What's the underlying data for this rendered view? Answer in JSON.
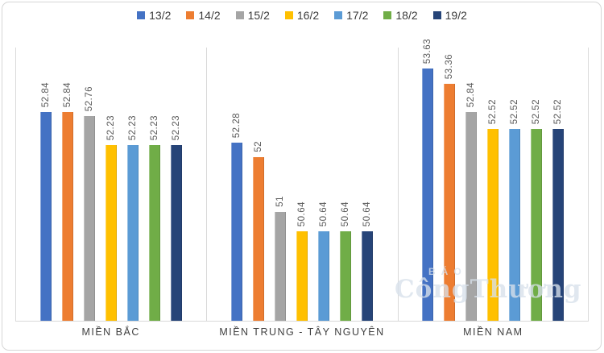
{
  "chart_data": {
    "type": "bar",
    "categories": [
      "MIỀN BẮC",
      "MIỀN TRUNG - TÂY NGUYÊN",
      "MIỀN NAM"
    ],
    "series": [
      {
        "name": "13/2",
        "color": "#4472C4",
        "values": [
          52.84,
          52.28,
          53.63
        ]
      },
      {
        "name": "14/2",
        "color": "#ED7D31",
        "values": [
          52.84,
          52,
          53.36
        ]
      },
      {
        "name": "15/2",
        "color": "#A5A5A5",
        "values": [
          52.76,
          51,
          52.84
        ]
      },
      {
        "name": "16/2",
        "color": "#FFC000",
        "values": [
          52.23,
          50.64,
          52.52
        ]
      },
      {
        "name": "17/2",
        "color": "#5B9BD5",
        "values": [
          52.23,
          50.64,
          52.52
        ]
      },
      {
        "name": "18/2",
        "color": "#70AD47",
        "values": [
          52.23,
          50.64,
          52.52
        ]
      },
      {
        "name": "19/2",
        "color": "#264478",
        "values": [
          52.23,
          50.64,
          52.52
        ]
      }
    ],
    "value_axis": {
      "min": 49,
      "max": 54,
      "visible": false
    },
    "data_labels": {
      "shown": true,
      "rotation": -90
    },
    "legend_position": "top",
    "grid": "vertical-category-separators"
  },
  "watermark": {
    "line1": "BÁO",
    "line2": "CôngThương"
  }
}
